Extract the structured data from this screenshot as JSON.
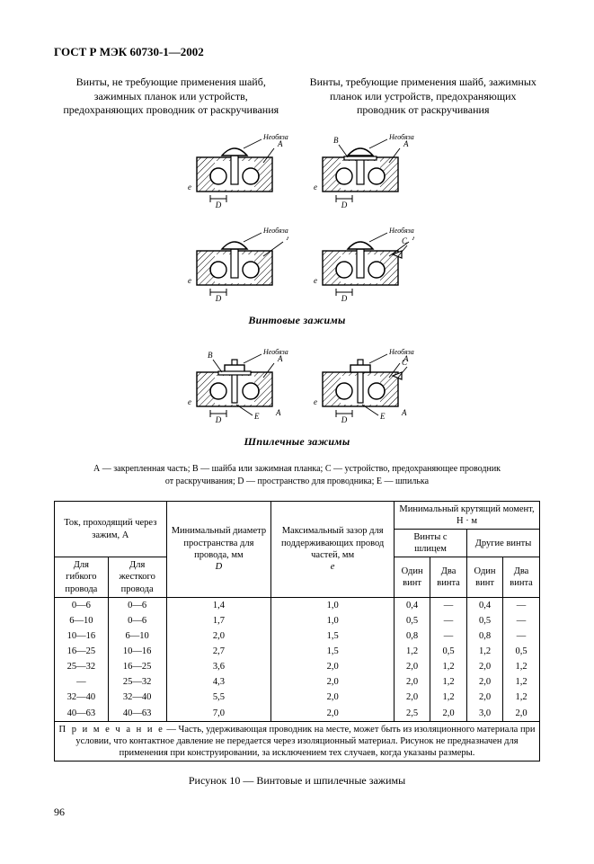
{
  "doc_code": "ГОСТ Р МЭК 60730-1—2002",
  "col_left_heading": "Винты, не требующие применения шайб, зажимных планок или устройств, предохраняющих проводник от раскручивания",
  "col_right_heading": "Винты, требующие применения шайб, зажимных планок или устройств, предохраняющих проводник от раскручивания",
  "section1_label": "Винтовые зажимы",
  "section2_label": "Шпилечные зажимы",
  "legend_line1": "А — закрепленная часть; В — шайба или зажимная планка; С — устройство, предохраняющее проводник",
  "legend_line2": "от раскручивания; D — пространство для проводника; E — шпилька",
  "table": {
    "h_current": "Ток, проходящий через зажим, А",
    "h_flex": "Для гибкого провода",
    "h_rigid": "Для жесткого провода",
    "h_diam": "Минимальный диаметр пространства для провода, мм",
    "h_diam_sym": "D",
    "h_gap": "Максимальный зазор для поддерживающих провод частей, мм",
    "h_gap_sym": "e",
    "h_torque": "Минимальный крутящий момент, Н · м",
    "h_slot": "Винты с шлицем",
    "h_other": "Другие винты",
    "h_one": "Один винт",
    "h_two": "Два винта",
    "rows": [
      {
        "flex": "0—6",
        "rigid": "0—6",
        "d": "1,4",
        "e": "1,0",
        "s1": "0,4",
        "s2": "—",
        "o1": "0,4",
        "o2": "—"
      },
      {
        "flex": "6—10",
        "rigid": "0—6",
        "d": "1,7",
        "e": "1,0",
        "s1": "0,5",
        "s2": "—",
        "o1": "0,5",
        "o2": "—"
      },
      {
        "flex": "10—16",
        "rigid": "6—10",
        "d": "2,0",
        "e": "1,5",
        "s1": "0,8",
        "s2": "—",
        "o1": "0,8",
        "o2": "—"
      },
      {
        "flex": "16—25",
        "rigid": "10—16",
        "d": "2,7",
        "e": "1,5",
        "s1": "1,2",
        "s2": "0,5",
        "o1": "1,2",
        "o2": "0,5"
      },
      {
        "flex": "25—32",
        "rigid": "16—25",
        "d": "3,6",
        "e": "2,0",
        "s1": "2,0",
        "s2": "1,2",
        "o1": "2,0",
        "o2": "1,2"
      },
      {
        "flex": "—",
        "rigid": "25—32",
        "d": "4,3",
        "e": "2,0",
        "s1": "2,0",
        "s2": "1,2",
        "o1": "2,0",
        "o2": "1,2"
      },
      {
        "flex": "32—40",
        "rigid": "32—40",
        "d": "5,5",
        "e": "2,0",
        "s1": "2,0",
        "s2": "1,2",
        "o1": "2,0",
        "o2": "1,2"
      },
      {
        "flex": "40—63",
        "rigid": "40—63",
        "d": "7,0",
        "e": "2,0",
        "s1": "2,5",
        "s2": "2,0",
        "o1": "3,0",
        "o2": "2,0"
      }
    ]
  },
  "note_label": "П р и м е ч а н и е",
  "note_text": " — Часть, удерживающая проводник на месте, может быть из изоляционного материала при условии, что контактное давление не передается через изоляционный материал. Рисунок не предназначен для применения при конструировании, за исключением тех случаев, когда указаны размеры.",
  "figure_caption": "Рисунок 10 — Винтовые и шпилечные зажимы",
  "page_number": "96",
  "diagram": {
    "stroke": "#000",
    "hatch": "#000",
    "label_font": 9,
    "optional_label": "Необязательно",
    "width": 120,
    "height": 90
  }
}
